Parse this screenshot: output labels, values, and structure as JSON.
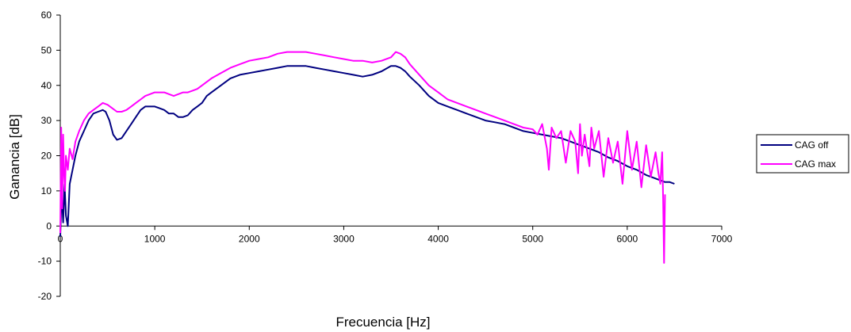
{
  "chart_data": {
    "type": "line",
    "title": "",
    "xlabel": "Frecuencia [Hz]",
    "ylabel": "Ganancia [dB]",
    "xlim": [
      0,
      7000
    ],
    "ylim": [
      -20,
      60
    ],
    "xticks": [
      0,
      1000,
      2000,
      3000,
      4000,
      5000,
      6000,
      7000
    ],
    "yticks": [
      -20,
      -10,
      0,
      10,
      20,
      30,
      40,
      50,
      60
    ],
    "grid": false,
    "legend_position": "right",
    "series": [
      {
        "name": "CAG off",
        "color": "#000080",
        "x": [
          0,
          15,
          30,
          45,
          60,
          80,
          100,
          130,
          160,
          200,
          250,
          300,
          350,
          400,
          450,
          480,
          520,
          560,
          600,
          650,
          700,
          750,
          800,
          850,
          900,
          950,
          1000,
          1050,
          1100,
          1150,
          1200,
          1250,
          1300,
          1350,
          1400,
          1450,
          1500,
          1550,
          1600,
          1700,
          1800,
          1900,
          2000,
          2100,
          2200,
          2300,
          2400,
          2500,
          2600,
          2700,
          2800,
          2900,
          3000,
          3100,
          3200,
          3300,
          3400,
          3500,
          3550,
          3600,
          3650,
          3700,
          3800,
          3900,
          4000,
          4100,
          4200,
          4300,
          4400,
          4500,
          4600,
          4700,
          4800,
          4900,
          5000,
          5100,
          5200,
          5300,
          5400,
          5500,
          5600,
          5700,
          5800,
          5900,
          6000,
          6100,
          6200,
          6300,
          6350,
          6400,
          6450,
          6500
        ],
        "y": [
          -3,
          10,
          1,
          12,
          3,
          0,
          12,
          16,
          20,
          24,
          27,
          30,
          32,
          32.5,
          33,
          32.5,
          30,
          26,
          24.5,
          25,
          27,
          29,
          31,
          33,
          34,
          34,
          34,
          33.5,
          33,
          32,
          32,
          31,
          31,
          31.5,
          33,
          34,
          35,
          37,
          38,
          40,
          42,
          43,
          43.5,
          44,
          44.5,
          45,
          45.5,
          45.5,
          45.5,
          45,
          44.5,
          44,
          43.5,
          43,
          42.5,
          43,
          44,
          45.5,
          45.5,
          45,
          44,
          42.5,
          40,
          37,
          35,
          34,
          33,
          32,
          31,
          30,
          29.5,
          29,
          28,
          27,
          26.5,
          26,
          25.5,
          25,
          24,
          23,
          22,
          21,
          19.5,
          18.5,
          17,
          16,
          14.5,
          13.5,
          13,
          12.5,
          12.5,
          12
        ]
      },
      {
        "name": "CAG max",
        "color": "#ff00ff",
        "x": [
          0,
          10,
          20,
          30,
          40,
          50,
          60,
          80,
          100,
          130,
          160,
          200,
          250,
          300,
          350,
          400,
          450,
          500,
          550,
          600,
          650,
          700,
          750,
          800,
          850,
          900,
          950,
          1000,
          1050,
          1100,
          1150,
          1200,
          1250,
          1300,
          1350,
          1400,
          1450,
          1500,
          1600,
          1700,
          1800,
          1900,
          2000,
          2100,
          2200,
          2300,
          2400,
          2500,
          2600,
          2700,
          2800,
          2900,
          3000,
          3100,
          3200,
          3300,
          3400,
          3500,
          3550,
          3600,
          3650,
          3700,
          3800,
          3900,
          4000,
          4100,
          4200,
          4300,
          4400,
          4500,
          4600,
          4700,
          4800,
          4900,
          5000,
          5050,
          5100,
          5150,
          5170,
          5200,
          5250,
          5300,
          5350,
          5400,
          5450,
          5480,
          5500,
          5520,
          5550,
          5600,
          5620,
          5650,
          5700,
          5750,
          5800,
          5850,
          5900,
          5950,
          6000,
          6050,
          6100,
          6150,
          6200,
          6250,
          6300,
          6330,
          6350,
          6370,
          6380,
          6390,
          6400
        ],
        "y": [
          -2,
          28,
          5,
          26,
          15,
          10,
          20,
          16,
          22,
          19,
          24,
          27,
          30,
          32,
          33,
          34,
          35,
          34.5,
          33.5,
          32.5,
          32.5,
          33,
          34,
          35,
          36,
          37,
          37.5,
          38,
          38,
          38,
          37.5,
          37,
          37.5,
          38,
          38,
          38.5,
          39,
          40,
          42,
          43.5,
          45,
          46,
          47,
          47.5,
          48,
          49,
          49.5,
          49.5,
          49.5,
          49,
          48.5,
          48,
          47.5,
          47,
          47,
          46.5,
          47,
          48,
          49.5,
          49,
          48,
          46,
          43,
          40,
          38,
          36,
          35,
          34,
          33,
          32,
          31,
          30,
          29,
          28,
          27.5,
          26,
          29,
          22,
          16,
          28,
          25,
          27,
          18,
          27,
          24,
          15,
          29,
          20,
          26,
          17,
          28,
          22,
          27,
          14,
          25,
          18,
          24,
          12,
          27,
          16,
          24,
          11,
          23,
          14,
          21,
          15,
          12,
          21,
          8,
          -10.5,
          9
        ]
      }
    ]
  }
}
